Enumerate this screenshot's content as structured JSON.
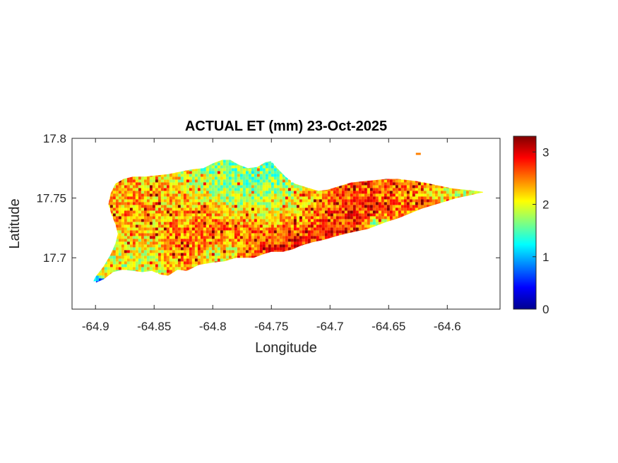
{
  "chart_data": {
    "type": "heatmap",
    "title": "ACTUAL ET (mm) 23-Oct-2025",
    "xlabel": "Longitude",
    "ylabel": "Latitude",
    "xlim": [
      -64.92,
      -64.555
    ],
    "ylim": [
      17.657,
      17.8
    ],
    "xticks": [
      -64.9,
      -64.85,
      -64.8,
      -64.75,
      -64.7,
      -64.65,
      -64.6
    ],
    "yticks": [
      17.7,
      17.75,
      17.8
    ],
    "colorbar": {
      "colormap": "jet",
      "range": [
        0,
        3.3
      ],
      "ticks": [
        0,
        1,
        2,
        3
      ]
    },
    "grid": false,
    "regions": [
      {
        "name": "",
        "outline": [
          [
            -64.9,
            17.679
          ],
          [
            -64.893,
            17.682
          ],
          [
            -64.885,
            17.688
          ],
          [
            -64.877,
            17.69
          ],
          [
            -64.868,
            17.689
          ],
          [
            -64.86,
            17.688
          ],
          [
            -64.852,
            17.689
          ],
          [
            -64.845,
            17.686
          ],
          [
            -64.838,
            17.685
          ],
          [
            -64.83,
            17.69
          ],
          [
            -64.822,
            17.689
          ],
          [
            -64.812,
            17.694
          ],
          [
            -64.8,
            17.696
          ],
          [
            -64.79,
            17.697
          ],
          [
            -64.78,
            17.7
          ],
          [
            -64.773,
            17.7
          ],
          [
            -64.765,
            17.7
          ],
          [
            -64.757,
            17.703
          ],
          [
            -64.75,
            17.705
          ],
          [
            -64.74,
            17.705
          ],
          [
            -64.732,
            17.707
          ],
          [
            -64.725,
            17.71
          ],
          [
            -64.715,
            17.713
          ],
          [
            -64.705,
            17.715
          ],
          [
            -64.695,
            17.718
          ],
          [
            -64.687,
            17.72
          ],
          [
            -64.678,
            17.722
          ],
          [
            -64.668,
            17.724
          ],
          [
            -64.66,
            17.727
          ],
          [
            -64.652,
            17.73
          ],
          [
            -64.642,
            17.733
          ],
          [
            -64.632,
            17.737
          ],
          [
            -64.622,
            17.741
          ],
          [
            -64.612,
            17.744
          ],
          [
            -64.602,
            17.747
          ],
          [
            -64.592,
            17.75
          ],
          [
            -64.582,
            17.752
          ],
          [
            -64.573,
            17.754
          ],
          [
            -64.568,
            17.755
          ],
          [
            -64.575,
            17.756
          ],
          [
            -64.585,
            17.757
          ],
          [
            -64.595,
            17.758
          ],
          [
            -64.605,
            17.76
          ],
          [
            -64.615,
            17.762
          ],
          [
            -64.625,
            17.764
          ],
          [
            -64.633,
            17.765
          ],
          [
            -64.642,
            17.766
          ],
          [
            -64.652,
            17.766
          ],
          [
            -64.662,
            17.765
          ],
          [
            -64.672,
            17.764
          ],
          [
            -64.682,
            17.763
          ],
          [
            -64.692,
            17.76
          ],
          [
            -64.702,
            17.757
          ],
          [
            -64.71,
            17.756
          ],
          [
            -64.72,
            17.759
          ],
          [
            -64.73,
            17.762
          ],
          [
            -64.738,
            17.768
          ],
          [
            -64.745,
            17.775
          ],
          [
            -64.75,
            17.781
          ],
          [
            -64.755,
            17.78
          ],
          [
            -64.762,
            17.776
          ],
          [
            -64.77,
            17.775
          ],
          [
            -64.778,
            17.778
          ],
          [
            -64.785,
            17.782
          ],
          [
            -64.792,
            17.782
          ],
          [
            -64.8,
            17.779
          ],
          [
            -64.808,
            17.775
          ],
          [
            -64.818,
            17.774
          ],
          [
            -64.828,
            17.772
          ],
          [
            -64.838,
            17.77
          ],
          [
            -64.848,
            17.769
          ],
          [
            -64.858,
            17.768
          ],
          [
            -64.868,
            17.768
          ],
          [
            -64.876,
            17.766
          ],
          [
            -64.883,
            17.762
          ],
          [
            -64.887,
            17.754
          ],
          [
            -64.889,
            17.745
          ],
          [
            -64.886,
            17.735
          ],
          [
            -64.883,
            17.728
          ],
          [
            -64.881,
            17.72
          ],
          [
            -64.883,
            17.712
          ],
          [
            -64.887,
            17.703
          ],
          [
            -64.893,
            17.693
          ],
          [
            -64.9,
            17.684
          ],
          [
            -64.902,
            17.68
          ]
        ]
      }
    ],
    "hotspots": [
      {
        "lon": -64.885,
        "lat": 17.74,
        "value": 2.35,
        "radius": 0.025
      },
      {
        "lon": -64.87,
        "lat": 17.705,
        "value": 1.9,
        "radius": 0.015
      },
      {
        "lon": -64.84,
        "lat": 17.74,
        "value": 2.25,
        "radius": 0.03
      },
      {
        "lon": -64.8,
        "lat": 17.725,
        "value": 2.7,
        "radius": 0.022
      },
      {
        "lon": -64.8,
        "lat": 17.765,
        "value": 1.7,
        "radius": 0.02
      },
      {
        "lon": -64.755,
        "lat": 17.75,
        "value": 1.5,
        "radius": 0.03
      },
      {
        "lon": -64.79,
        "lat": 17.705,
        "value": 1.6,
        "radius": 0.012
      },
      {
        "lon": -64.73,
        "lat": 17.74,
        "value": 2.0,
        "radius": 0.015
      },
      {
        "lon": -64.74,
        "lat": 17.717,
        "value": 2.85,
        "radius": 0.028
      },
      {
        "lon": -64.7,
        "lat": 17.73,
        "value": 2.8,
        "radius": 0.03
      },
      {
        "lon": -64.66,
        "lat": 17.75,
        "value": 2.7,
        "radius": 0.03
      },
      {
        "lon": -64.65,
        "lat": 17.762,
        "value": 2.6,
        "radius": 0.02
      },
      {
        "lon": -64.625,
        "lat": 17.752,
        "value": 2.2,
        "radius": 0.025
      },
      {
        "lon": -64.59,
        "lat": 17.753,
        "value": 1.9,
        "radius": 0.015
      },
      {
        "lon": -64.66,
        "lat": 17.728,
        "value": 0.7,
        "radius": 0.006
      },
      {
        "lon": -64.777,
        "lat": 17.697,
        "value": 3.2,
        "radius": 0.005
      },
      {
        "lon": -64.9,
        "lat": 17.68,
        "value": 0.8,
        "radius": 0.003
      }
    ]
  }
}
